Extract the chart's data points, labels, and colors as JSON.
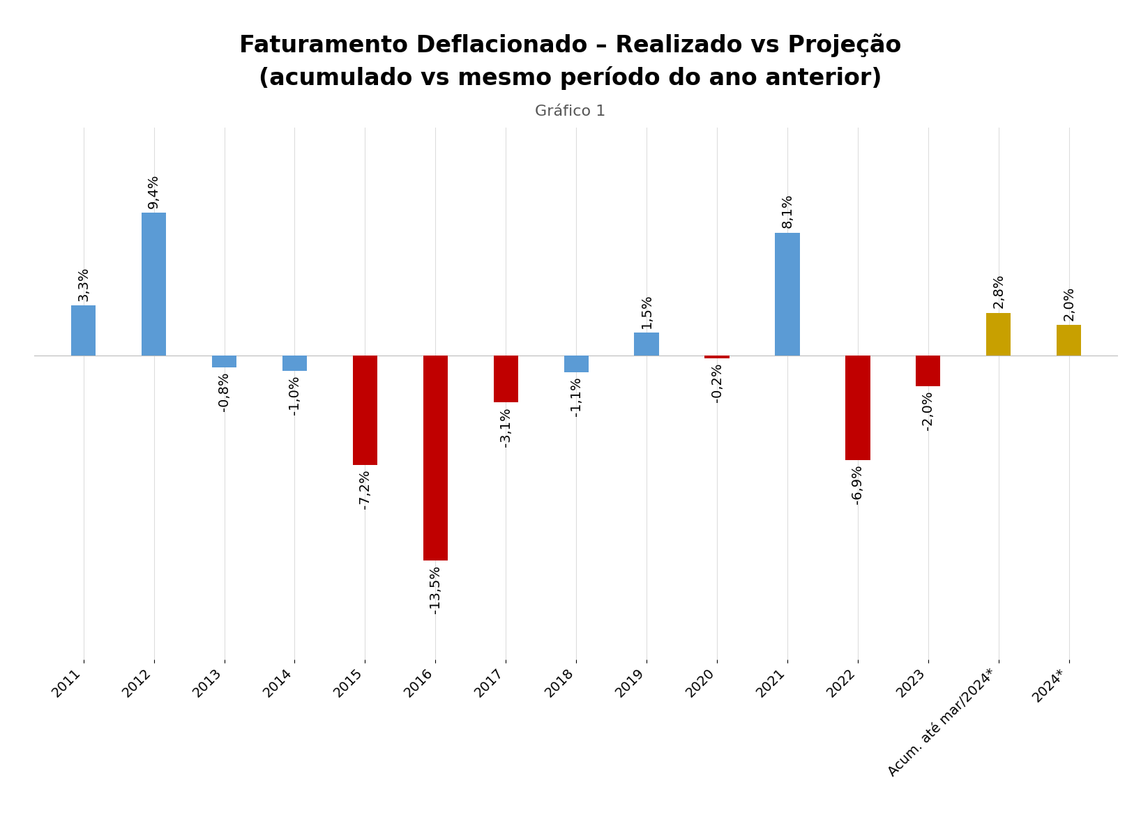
{
  "title_line1": "Faturamento Deflacionado – Realizado vs Projeção",
  "title_line2": "(acumulado vs mesmo período do ano anterior)",
  "subtitle": "Gráfico 1",
  "categories": [
    "2011",
    "2012",
    "2013",
    "2014",
    "2015",
    "2016",
    "2017",
    "2018",
    "2019",
    "2020",
    "2021",
    "2022",
    "2023",
    "Acum. até mar/2024*",
    "2024*"
  ],
  "values": [
    3.3,
    9.4,
    -0.8,
    -1.0,
    -7.2,
    -13.5,
    -3.1,
    -1.1,
    1.5,
    -0.2,
    8.1,
    -6.9,
    -2.0,
    2.8,
    2.0
  ],
  "colors": [
    "#5B9BD5",
    "#5B9BD5",
    "#5B9BD5",
    "#5B9BD5",
    "#C00000",
    "#C00000",
    "#C00000",
    "#5B9BD5",
    "#5B9BD5",
    "#C00000",
    "#5B9BD5",
    "#C00000",
    "#C00000",
    "#C8A000",
    "#C8A000"
  ],
  "labels": [
    "3,3%",
    "9,4%",
    "-0,8%",
    "-1,0%",
    "-7,2%",
    "-13,5%",
    "-3,1%",
    "-1,1%",
    "1,5%",
    "-0,2%",
    "8,1%",
    "-6,9%",
    "-2,0%",
    "2,8%",
    "2,0%"
  ],
  "ylim": [
    -20,
    15
  ],
  "background_color": "#FFFFFF",
  "title_fontsize": 24,
  "subtitle_fontsize": 16,
  "label_fontsize": 14,
  "tick_fontsize": 14,
  "bar_width": 0.35
}
